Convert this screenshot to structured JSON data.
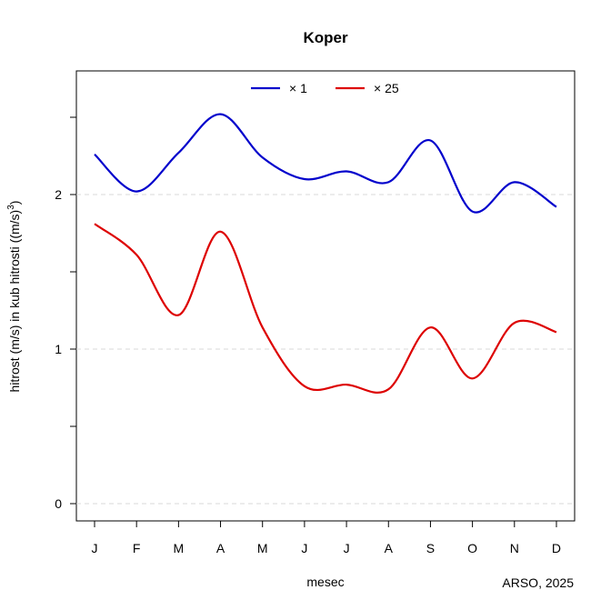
{
  "chart_data": {
    "type": "line",
    "title": "Koper",
    "xlabel": "mesec",
    "ylabel": "hitrost (m/s) in kub hitrosti ((m/s)",
    "ylabel_sup": "3",
    "ylabel_tail": ")",
    "categories": [
      "J",
      "F",
      "M",
      "A",
      "M",
      "J",
      "J",
      "A",
      "S",
      "O",
      "N",
      "D"
    ],
    "yticks": [
      0,
      1,
      2
    ],
    "ylim": [
      -0.1,
      2.8
    ],
    "grid": "horizontal dashed",
    "legend_position": "top-center",
    "series": [
      {
        "name": "× 1",
        "color": "#0000cc",
        "values": [
          2.26,
          2.02,
          2.27,
          2.52,
          2.24,
          2.1,
          2.15,
          2.08,
          2.35,
          1.89,
          2.08,
          1.92
        ]
      },
      {
        "name": "×  25",
        "color": "#dd0000",
        "values": [
          1.81,
          1.61,
          1.22,
          1.76,
          1.14,
          0.76,
          0.77,
          0.74,
          1.14,
          0.81,
          1.17,
          1.11
        ]
      }
    ]
  },
  "source": "ARSO, 2025"
}
